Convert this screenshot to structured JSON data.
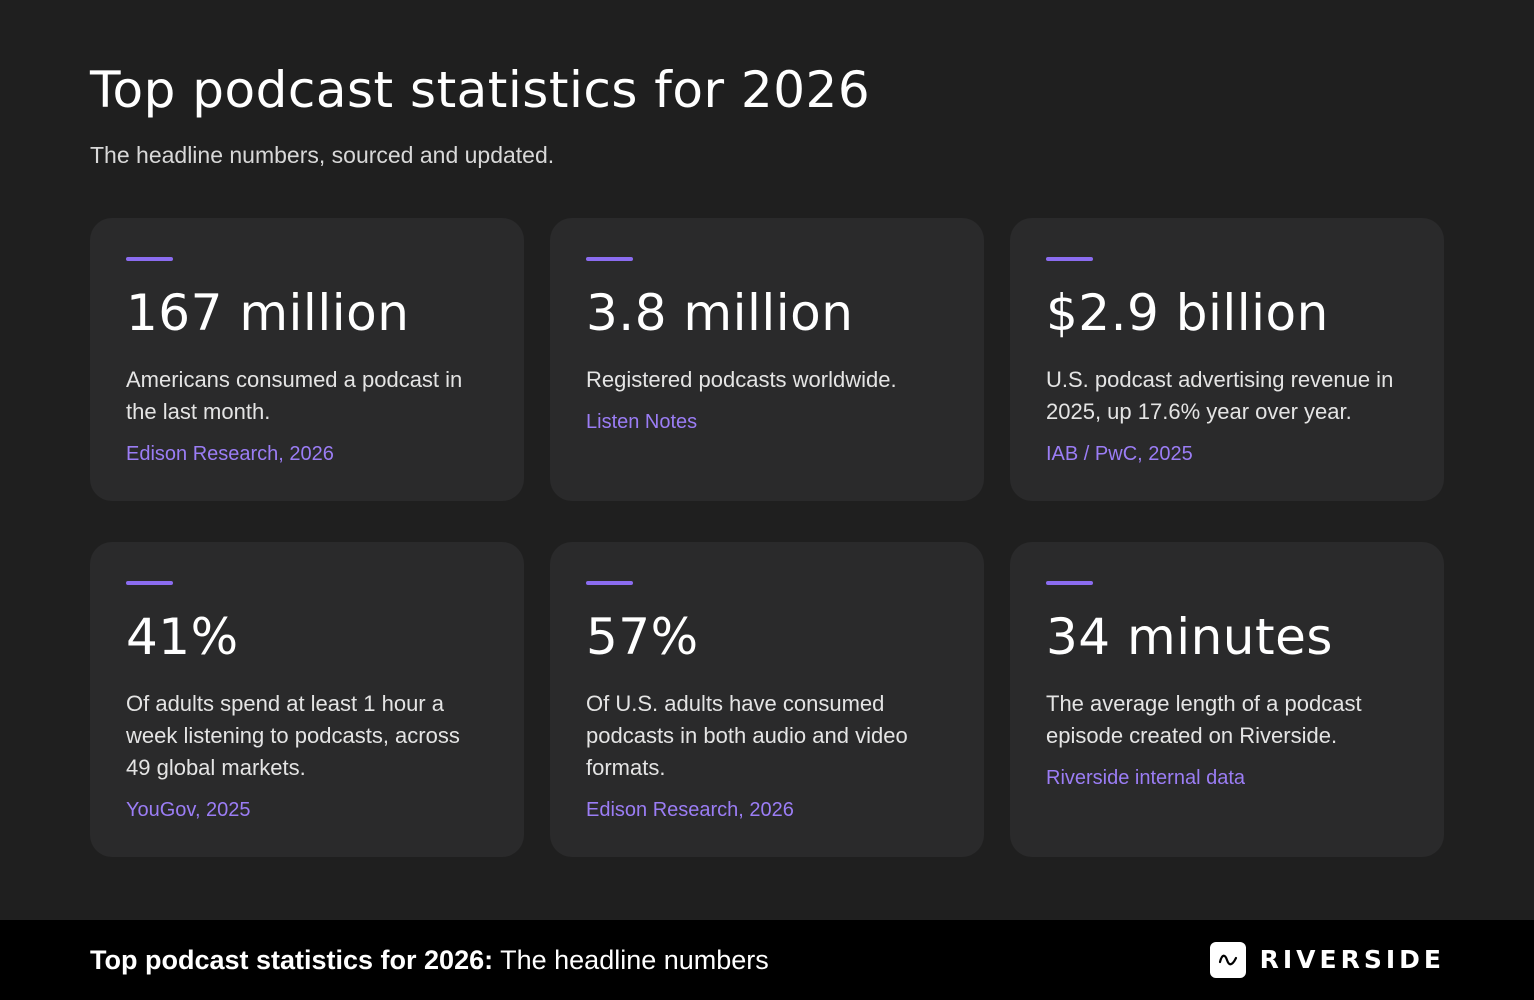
{
  "header": {
    "title": "Top podcast statistics for 2026",
    "subtitle": "The headline numbers, sourced and updated."
  },
  "colors": {
    "background": "#1f1f1f",
    "card": "#2a2a2b",
    "accent": "#8b6cf0",
    "source_text": "#9b7df5",
    "footer": "#000000"
  },
  "stats": [
    {
      "value": "167 million",
      "description": "Americans consumed a podcast in the last month.",
      "source": "Edison Research, 2026"
    },
    {
      "value": "3.8 million",
      "description": "Registered podcasts worldwide.",
      "source": "Listen Notes"
    },
    {
      "value": "$2.9 billion",
      "description": "U.S. podcast advertising revenue in 2025, up 17.6% year over year.",
      "source": "IAB / PwC, 2025"
    },
    {
      "value": "41%",
      "description": "Of adults spend at least 1 hour a week listening to podcasts, across 49 global markets.",
      "source": "YouGov, 2025"
    },
    {
      "value": "57%",
      "description": "Of U.S. adults have consumed podcasts in both audio and video formats.",
      "source": "Edison Research, 2026"
    },
    {
      "value": "34 minutes",
      "description": "The average length of a podcast episode created on Riverside.",
      "source": "Riverside internal data"
    }
  ],
  "footer": {
    "bold_text": "Top podcast statistics for 2026:",
    "text": " The headline numbers",
    "brand_name": "RIVERSIDE",
    "brand_icon": "riverside-wave-logo-icon"
  }
}
